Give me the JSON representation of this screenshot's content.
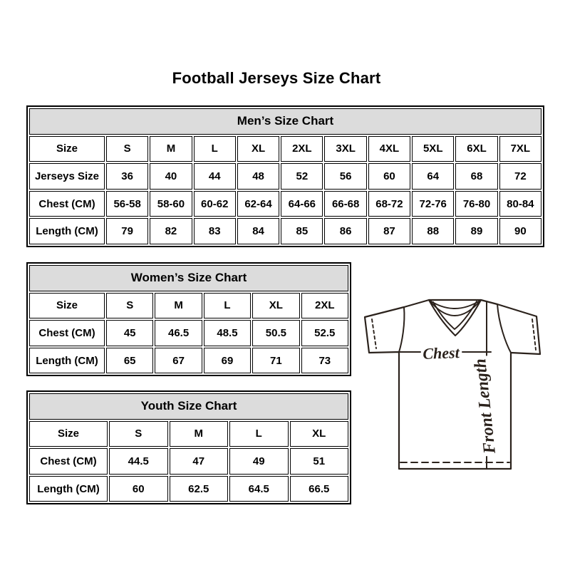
{
  "page": {
    "title": "Football Jerseys Size Chart"
  },
  "colors": {
    "table_header_bg": "#dcdcdc",
    "table_border": "#000000",
    "diagram_stroke": "#2b221c"
  },
  "tables": {
    "men": {
      "title": "Men’s Size Chart",
      "columns": [
        "Size",
        "S",
        "M",
        "L",
        "XL",
        "2XL",
        "3XL",
        "4XL",
        "5XL",
        "6XL",
        "7XL"
      ],
      "rows": [
        [
          "Jerseys Size",
          "36",
          "40",
          "44",
          "48",
          "52",
          "56",
          "60",
          "64",
          "68",
          "72"
        ],
        [
          "Chest (CM)",
          "56-58",
          "58-60",
          "60-62",
          "62-64",
          "64-66",
          "66-68",
          "68-72",
          "72-76",
          "76-80",
          "80-84"
        ],
        [
          "Length (CM)",
          "79",
          "82",
          "83",
          "84",
          "85",
          "86",
          "87",
          "88",
          "89",
          "90"
        ]
      ]
    },
    "women": {
      "title": "Women’s Size Chart",
      "columns": [
        "Size",
        "S",
        "M",
        "L",
        "XL",
        "2XL"
      ],
      "rows": [
        [
          "Chest (CM)",
          "45",
          "46.5",
          "48.5",
          "50.5",
          "52.5"
        ],
        [
          "Length (CM)",
          "65",
          "67",
          "69",
          "71",
          "73"
        ]
      ]
    },
    "youth": {
      "title": "Youth Size Chart",
      "columns": [
        "Size",
        "S",
        "M",
        "L",
        "XL"
      ],
      "rows": [
        [
          "Chest (CM)",
          "44.5",
          "47",
          "49",
          "51"
        ],
        [
          "Length (CM)",
          "60",
          "62.5",
          "64.5",
          "66.5"
        ]
      ]
    }
  },
  "diagram": {
    "chest_label": "Chest",
    "front_length_label": "Front Length"
  }
}
